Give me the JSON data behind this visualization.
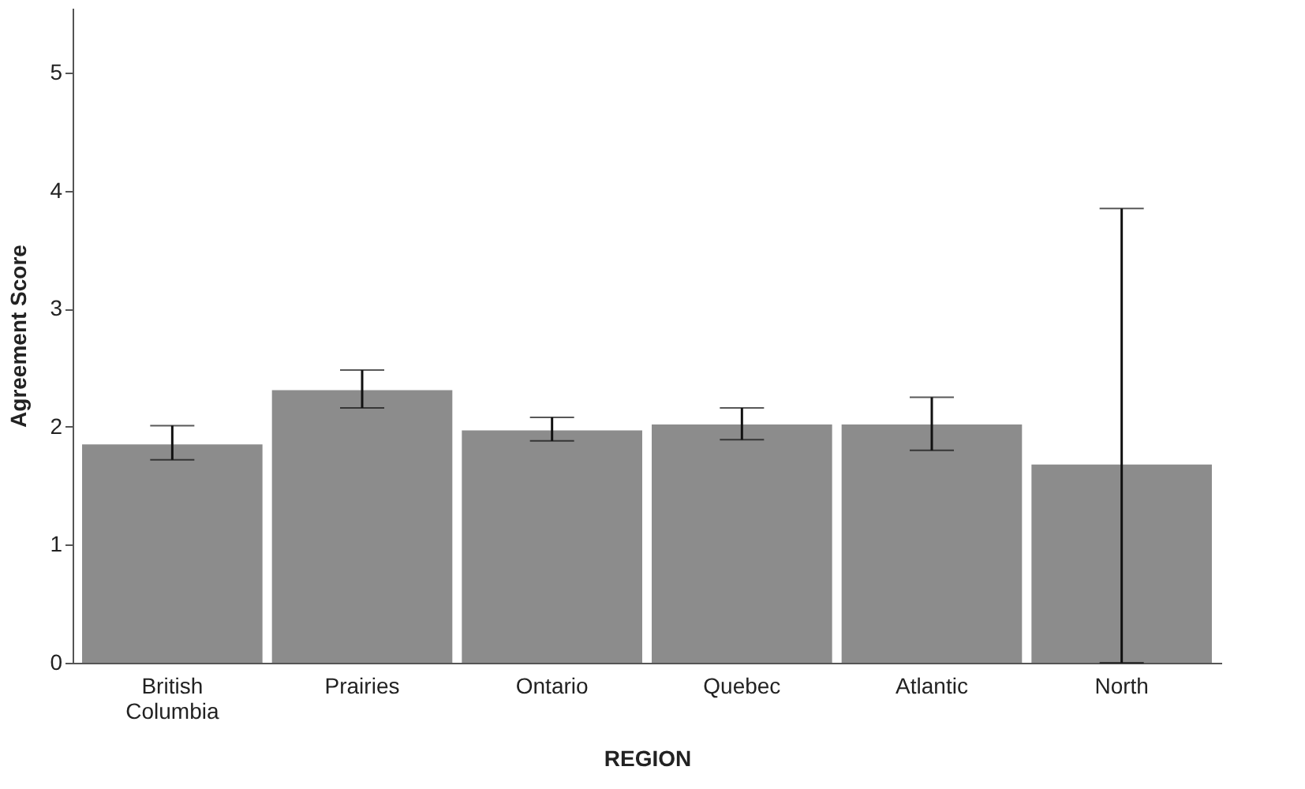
{
  "chart_data": {
    "type": "bar",
    "xlabel": "REGION",
    "ylabel": "Agreement Score",
    "categories": [
      "British Columbia",
      "Prairies",
      "Ontario",
      "Quebec",
      "Atlantic",
      "North"
    ],
    "values": [
      1.85,
      2.31,
      1.97,
      2.02,
      2.02,
      1.68
    ],
    "errors": [
      [
        1.72,
        2.01
      ],
      [
        2.16,
        2.48
      ],
      [
        1.88,
        2.08
      ],
      [
        1.89,
        2.16
      ],
      [
        1.8,
        2.25
      ],
      [
        0,
        3.85
      ]
    ],
    "color": "#8c8c8c",
    "ylim": [
      0,
      5.55
    ],
    "yticks": [
      0,
      1,
      2,
      3,
      4,
      5
    ],
    "grid": false
  }
}
